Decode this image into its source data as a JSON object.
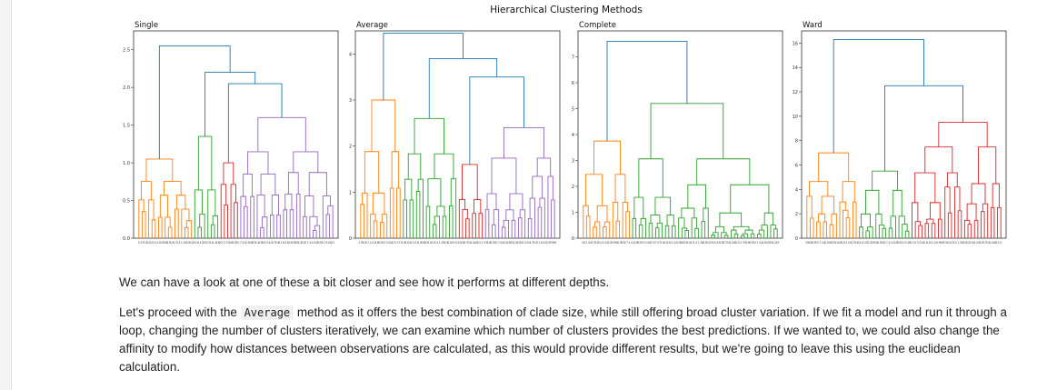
{
  "figure": {
    "suptitle": "Hierarchical Clustering Methods"
  },
  "chart_data": [
    {
      "type": "dendrogram",
      "title": "Single",
      "ylim": [
        0,
        2.75
      ],
      "yticks": [
        "0.0",
        "0.5",
        "1.0",
        "1.5",
        "2.0",
        "2.5"
      ],
      "n_leaves": 60,
      "colors": [
        "#ff7f0e",
        "#2ca02c",
        "#d62728",
        "#9467bd",
        "#1f77b4"
      ],
      "clusters": [
        {
          "color": "#ff7f0e",
          "leaves": 17,
          "height": 1.05
        },
        {
          "color": "#2ca02c",
          "leaves": 8,
          "height": 1.35
        },
        {
          "color": "#d62728",
          "leaves": 6,
          "height": 1.0
        },
        {
          "color": "#9467bd",
          "leaves": 29,
          "height": 1.6
        }
      ],
      "links": [
        {
          "height": 2.05
        },
        {
          "height": 2.2
        },
        {
          "height": 2.55
        }
      ]
    },
    {
      "type": "dendrogram",
      "title": "Average",
      "ylim": [
        0,
        4.5
      ],
      "yticks": [
        "0",
        "1",
        "2",
        "3",
        "4"
      ],
      "n_leaves": 60,
      "colors": [
        "#ff7f0e",
        "#2ca02c",
        "#d62728",
        "#9467bd",
        "#1f77b4"
      ],
      "clusters": [
        {
          "color": "#ff7f0e",
          "leaves": 13,
          "height": 3.0
        },
        {
          "color": "#2ca02c",
          "leaves": 17,
          "height": 2.6
        },
        {
          "color": "#d62728",
          "leaves": 8,
          "height": 1.6
        },
        {
          "color": "#9467bd",
          "leaves": 22,
          "height": 2.4
        }
      ],
      "links": [
        {
          "height": 3.5
        },
        {
          "height": 3.9
        },
        {
          "height": 4.45
        }
      ]
    },
    {
      "type": "dendrogram",
      "title": "Complete",
      "ylim": [
        0,
        8
      ],
      "yticks": [
        "0",
        "1",
        "2",
        "3",
        "4",
        "5",
        "6",
        "7"
      ],
      "n_leaves": 60,
      "colors": [
        "#ff7f0e",
        "#2ca02c",
        "#1f77b4"
      ],
      "clusters": [
        {
          "color": "#ff7f0e",
          "leaves": 15,
          "height": 3.75
        },
        {
          "color": "#2ca02c",
          "leaves": 45,
          "height": 5.2
        }
      ],
      "links": [
        {
          "height": 7.6
        }
      ]
    },
    {
      "type": "dendrogram",
      "title": "Ward",
      "ylim": [
        0,
        17
      ],
      "yticks": [
        "0",
        "2",
        "4",
        "6",
        "8",
        "10",
        "12",
        "14",
        "16"
      ],
      "n_leaves": 60,
      "colors": [
        "#ff7f0e",
        "#2ca02c",
        "#d62728",
        "#1f77b4"
      ],
      "clusters": [
        {
          "color": "#ff7f0e",
          "leaves": 16,
          "height": 7.0
        },
        {
          "color": "#2ca02c",
          "leaves": 16,
          "height": 5.5
        },
        {
          "color": "#d62728",
          "leaves": 28,
          "height": 9.5
        }
      ],
      "links": [
        {
          "height": 12.5
        },
        {
          "height": 16.3
        }
      ]
    }
  ],
  "prose": {
    "p1": "We can have a look at one of these a bit closer and see how it performs at different depths.",
    "p2_before": "Let's proceed with the ",
    "p2_code": "Average",
    "p2_after": " method as it offers the best combination of clade size, while still offering broad cluster variation. If we fit a model and run it through a loop, changing the number of clusters iteratively, we can examine which number of clusters provides the best predictions. If we wanted to, we could also change the affinity to modify how distances between observations are calculated, as this would provide different results, but we're going to leave this using the euclidean calculation."
  }
}
